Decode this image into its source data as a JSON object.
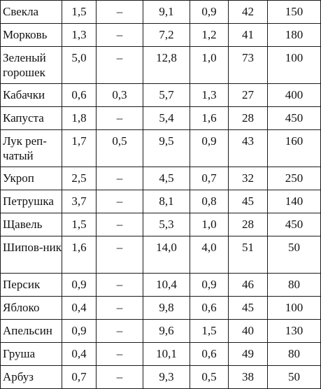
{
  "table": {
    "rows": [
      {
        "name": "Свекла",
        "c1": "1,5",
        "c2": "–",
        "c3": "9,1",
        "c4": "0,9",
        "c5": "42",
        "c6": "150"
      },
      {
        "name": "Морковь",
        "c1": "1,3",
        "c2": "–",
        "c3": "7,2",
        "c4": "1,2",
        "c5": "41",
        "c6": "180"
      },
      {
        "name": "Зеленый горошек",
        "c1": "5,0",
        "c2": "–",
        "c3": "12,8",
        "c4": "1,0",
        "c5": "73",
        "c6": "100"
      },
      {
        "name": "Кабачки",
        "c1": "0,6",
        "c2": "0,3",
        "c3": "5,7",
        "c4": "1,3",
        "c5": "27",
        "c6": "400"
      },
      {
        "name": "Капуста",
        "c1": "1,8",
        "c2": "–",
        "c3": "5,4",
        "c4": "1,6",
        "c5": "28",
        "c6": "450"
      },
      {
        "name": "Лук реп-чатый",
        "c1": "1,7",
        "c2": "0,5",
        "c3": "9,5",
        "c4": "0,9",
        "c5": "43",
        "c6": "160"
      },
      {
        "name": "Укроп",
        "c1": "2,5",
        "c2": "–",
        "c3": "4,5",
        "c4": "0,7",
        "c5": "32",
        "c6": "250"
      },
      {
        "name": "Петрушка",
        "c1": "3,7",
        "c2": "–",
        "c3": "8,1",
        "c4": "0,8",
        "c5": "45",
        "c6": "140"
      },
      {
        "name": "Щавель",
        "c1": "1,5",
        "c2": "–",
        "c3": "5,3",
        "c4": "1,0",
        "c5": "28",
        "c6": "450"
      },
      {
        "name": "Шипов-ник",
        "c1": "1,6",
        "c2": "–",
        "c3": "14,0",
        "c4": "4,0",
        "c5": "51",
        "c6": "50"
      },
      {
        "name": "Персик",
        "c1": "0,9",
        "c2": "–",
        "c3": "10,4",
        "c4": "0,9",
        "c5": "46",
        "c6": "80"
      },
      {
        "name": "Яблоко",
        "c1": "0,4",
        "c2": "–",
        "c3": "9,8",
        "c4": "0,6",
        "c5": "45",
        "c6": "100"
      },
      {
        "name": "Апельсин",
        "c1": "0,9",
        "c2": "–",
        "c3": "9,6",
        "c4": "1,5",
        "c5": "40",
        "c6": "130"
      },
      {
        "name": "Груша",
        "c1": "0,4",
        "c2": "–",
        "c3": "10,1",
        "c4": "0,6",
        "c5": "49",
        "c6": "80"
      },
      {
        "name": "Арбуз",
        "c1": "0,7",
        "c2": "–",
        "c3": "9,3",
        "c4": "0,5",
        "c5": "38",
        "c6": "50"
      }
    ]
  }
}
